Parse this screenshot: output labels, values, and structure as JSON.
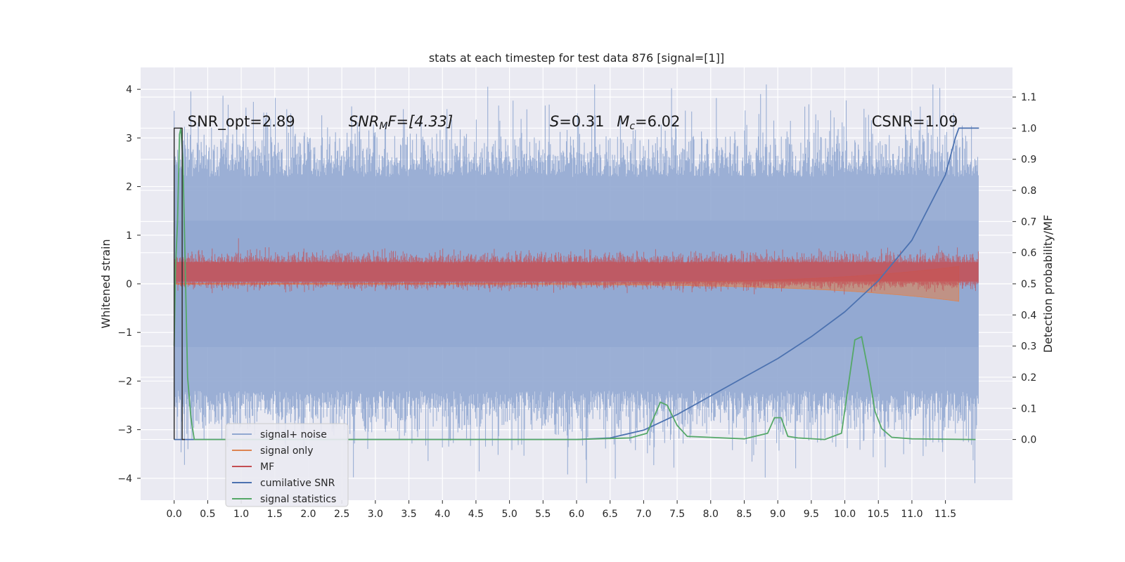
{
  "chart_data": {
    "type": "line",
    "title": "stats at each timestep for test data 876 [signal=[1]]",
    "ylabel": "Whitened strain",
    "y2label": "Detection probability/MF",
    "xlim": [
      -0.5,
      12.5
    ],
    "ylim": [
      -4.45,
      4.45
    ],
    "y2lim": [
      -0.195,
      1.195
    ],
    "xticks": [
      "0.0",
      "0.5",
      "1.0",
      "1.5",
      "2.0",
      "2.5",
      "3.0",
      "3.5",
      "4.0",
      "4.5",
      "5.0",
      "5.5",
      "6.0",
      "6.5",
      "7.0",
      "7.5",
      "8.0",
      "8.5",
      "9.0",
      "9.5",
      "10.0",
      "10.5",
      "11.0",
      "11.5"
    ],
    "yticks": [
      "4",
      "3",
      "2",
      "1",
      "0",
      "−1",
      "−2",
      "−3",
      "−4"
    ],
    "y2ticks": [
      "1.1",
      "1.0",
      "0.9",
      "0.8",
      "0.7",
      "0.6",
      "0.5",
      "0.4",
      "0.3",
      "0.2",
      "0.1",
      "0.0"
    ],
    "grid": true,
    "legend_position": "lower-left",
    "annotations": [
      {
        "text": "SNR_opt=2.89",
        "x": 0.2
      },
      {
        "text": "SNR",
        "sub": "M",
        "rest": "F=[4.33]",
        "x": 2.6
      },
      {
        "text": "S",
        "rest": "=0.31",
        "x": 5.6
      },
      {
        "text": "M",
        "sub": "c",
        "rest": "=6.02",
        "x": 6.6
      },
      {
        "text": "CSNR=1.09",
        "x": 10.4
      }
    ],
    "series": [
      {
        "name": "signal+ noise",
        "color": "#92a8d1",
        "axis": "left",
        "kind": "noise",
        "x_range": [
          0.0,
          11.99
        ],
        "envelope": [
          -2.2,
          2.2
        ],
        "core": [
          -1.3,
          1.3
        ]
      },
      {
        "name": "signal only",
        "color": "#dd8452",
        "axis": "left",
        "kind": "chirp",
        "x_range": [
          0.0,
          11.7
        ],
        "amplitude_end": 0.35
      },
      {
        "name": "MF",
        "color": "#c44e52",
        "axis": "left",
        "kind": "band",
        "x_range": [
          0.0,
          11.99
        ],
        "band": [
          0.05,
          0.6
        ]
      },
      {
        "name": "cumilative SNR",
        "color": "#4c72b0",
        "axis": "right",
        "x": [
          0.0,
          6.0,
          6.5,
          7.0,
          7.5,
          8.0,
          8.5,
          9.0,
          9.5,
          10.0,
          10.5,
          11.0,
          11.5,
          11.65,
          11.7,
          12.0
        ],
        "y": [
          0.0,
          0.0,
          0.005,
          0.03,
          0.08,
          0.14,
          0.2,
          0.26,
          0.33,
          0.41,
          0.51,
          0.64,
          0.85,
          0.97,
          1.0,
          1.0
        ]
      },
      {
        "name": "signal statistics",
        "color": "#55a868",
        "axis": "right",
        "x": [
          0.0,
          0.02,
          0.05,
          0.08,
          0.1,
          0.13,
          0.16,
          0.2,
          0.25,
          0.3,
          1.0,
          6.0,
          6.8,
          7.05,
          7.15,
          7.25,
          7.35,
          7.5,
          7.65,
          8.5,
          8.85,
          8.95,
          9.05,
          9.15,
          9.3,
          9.7,
          9.95,
          10.05,
          10.15,
          10.25,
          10.35,
          10.45,
          10.55,
          10.7,
          11.0,
          11.95
        ],
        "y": [
          0.3,
          0.55,
          0.7,
          0.98,
          1.0,
          0.9,
          0.6,
          0.2,
          0.07,
          0.0,
          0.0,
          0.0,
          0.005,
          0.02,
          0.07,
          0.12,
          0.11,
          0.045,
          0.01,
          0.002,
          0.02,
          0.07,
          0.07,
          0.01,
          0.005,
          0.0,
          0.02,
          0.17,
          0.32,
          0.33,
          0.22,
          0.09,
          0.035,
          0.007,
          0.002,
          0.0
        ]
      },
      {
        "name": "",
        "color": "#333333",
        "axis": "right",
        "kind": "vline",
        "x": [
          0.0,
          0.0,
          0.12,
          0.12,
          0.16
        ],
        "y": [
          0.0,
          1.0,
          1.0,
          0.0,
          0.0
        ]
      }
    ]
  }
}
